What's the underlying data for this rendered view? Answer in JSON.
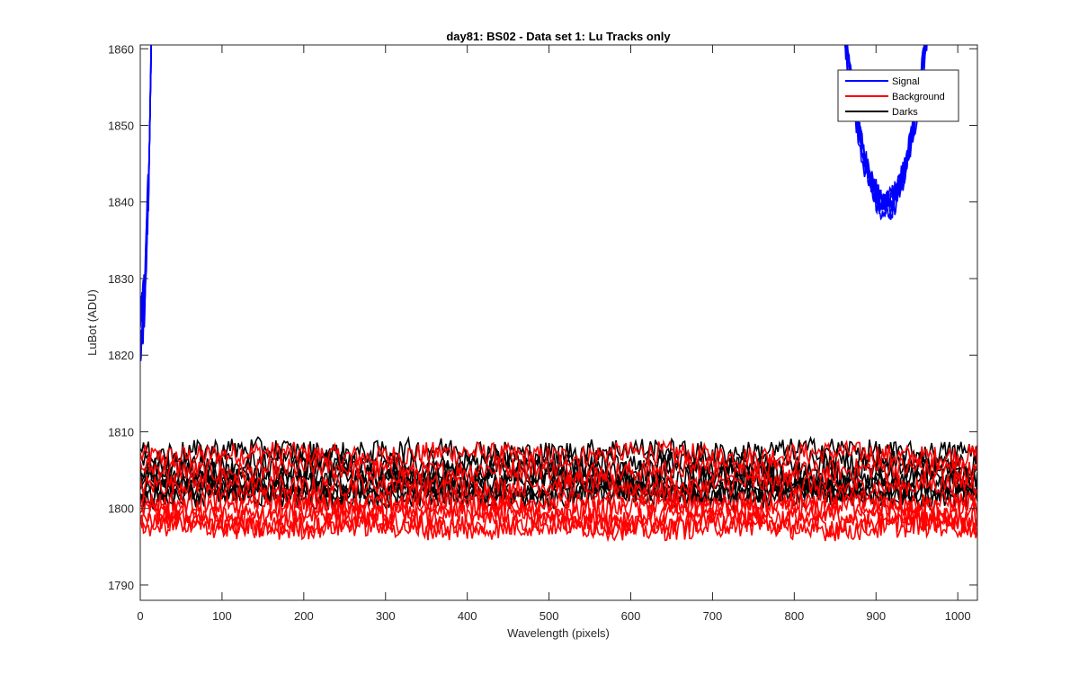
{
  "chart_data": {
    "type": "line",
    "title": "day81: BS02 - Data set 1: Lu Tracks only",
    "xlabel": "Wavelength (pixels)",
    "ylabel": "LuBot (ADU)",
    "xlim": [
      0,
      1024
    ],
    "ylim": [
      1788,
      1860.5
    ],
    "xticks": [
      0,
      100,
      200,
      300,
      400,
      500,
      600,
      700,
      800,
      900,
      1000
    ],
    "yticks": [
      1790,
      1800,
      1810,
      1820,
      1830,
      1840,
      1850,
      1860
    ],
    "grid": false,
    "legend_position": "top-right",
    "series": [
      {
        "name": "Signal",
        "color": "#0000ff",
        "description_points": [
          [
            0,
            1822
          ],
          [
            5,
            1822
          ],
          [
            10,
            1840
          ],
          [
            13,
            1861
          ],
          [
            860,
            1861
          ],
          [
            890,
            1850
          ],
          [
            915,
            1838
          ],
          [
            940,
            1850
          ],
          [
            960,
            1861
          ]
        ]
      },
      {
        "name": "Background",
        "color": "#ff0000",
        "traces_mean": [
          1807,
          1805,
          1803,
          1801,
          1800,
          1799,
          1798,
          1797.5
        ],
        "noise_amplitude": 1.5
      },
      {
        "name": "Darks",
        "color": "#000000",
        "traces_mean": [
          1807.5,
          1806,
          1805,
          1804,
          1803.5,
          1802.5,
          1802,
          1801.5
        ],
        "noise_amplitude": 1.5
      }
    ]
  }
}
